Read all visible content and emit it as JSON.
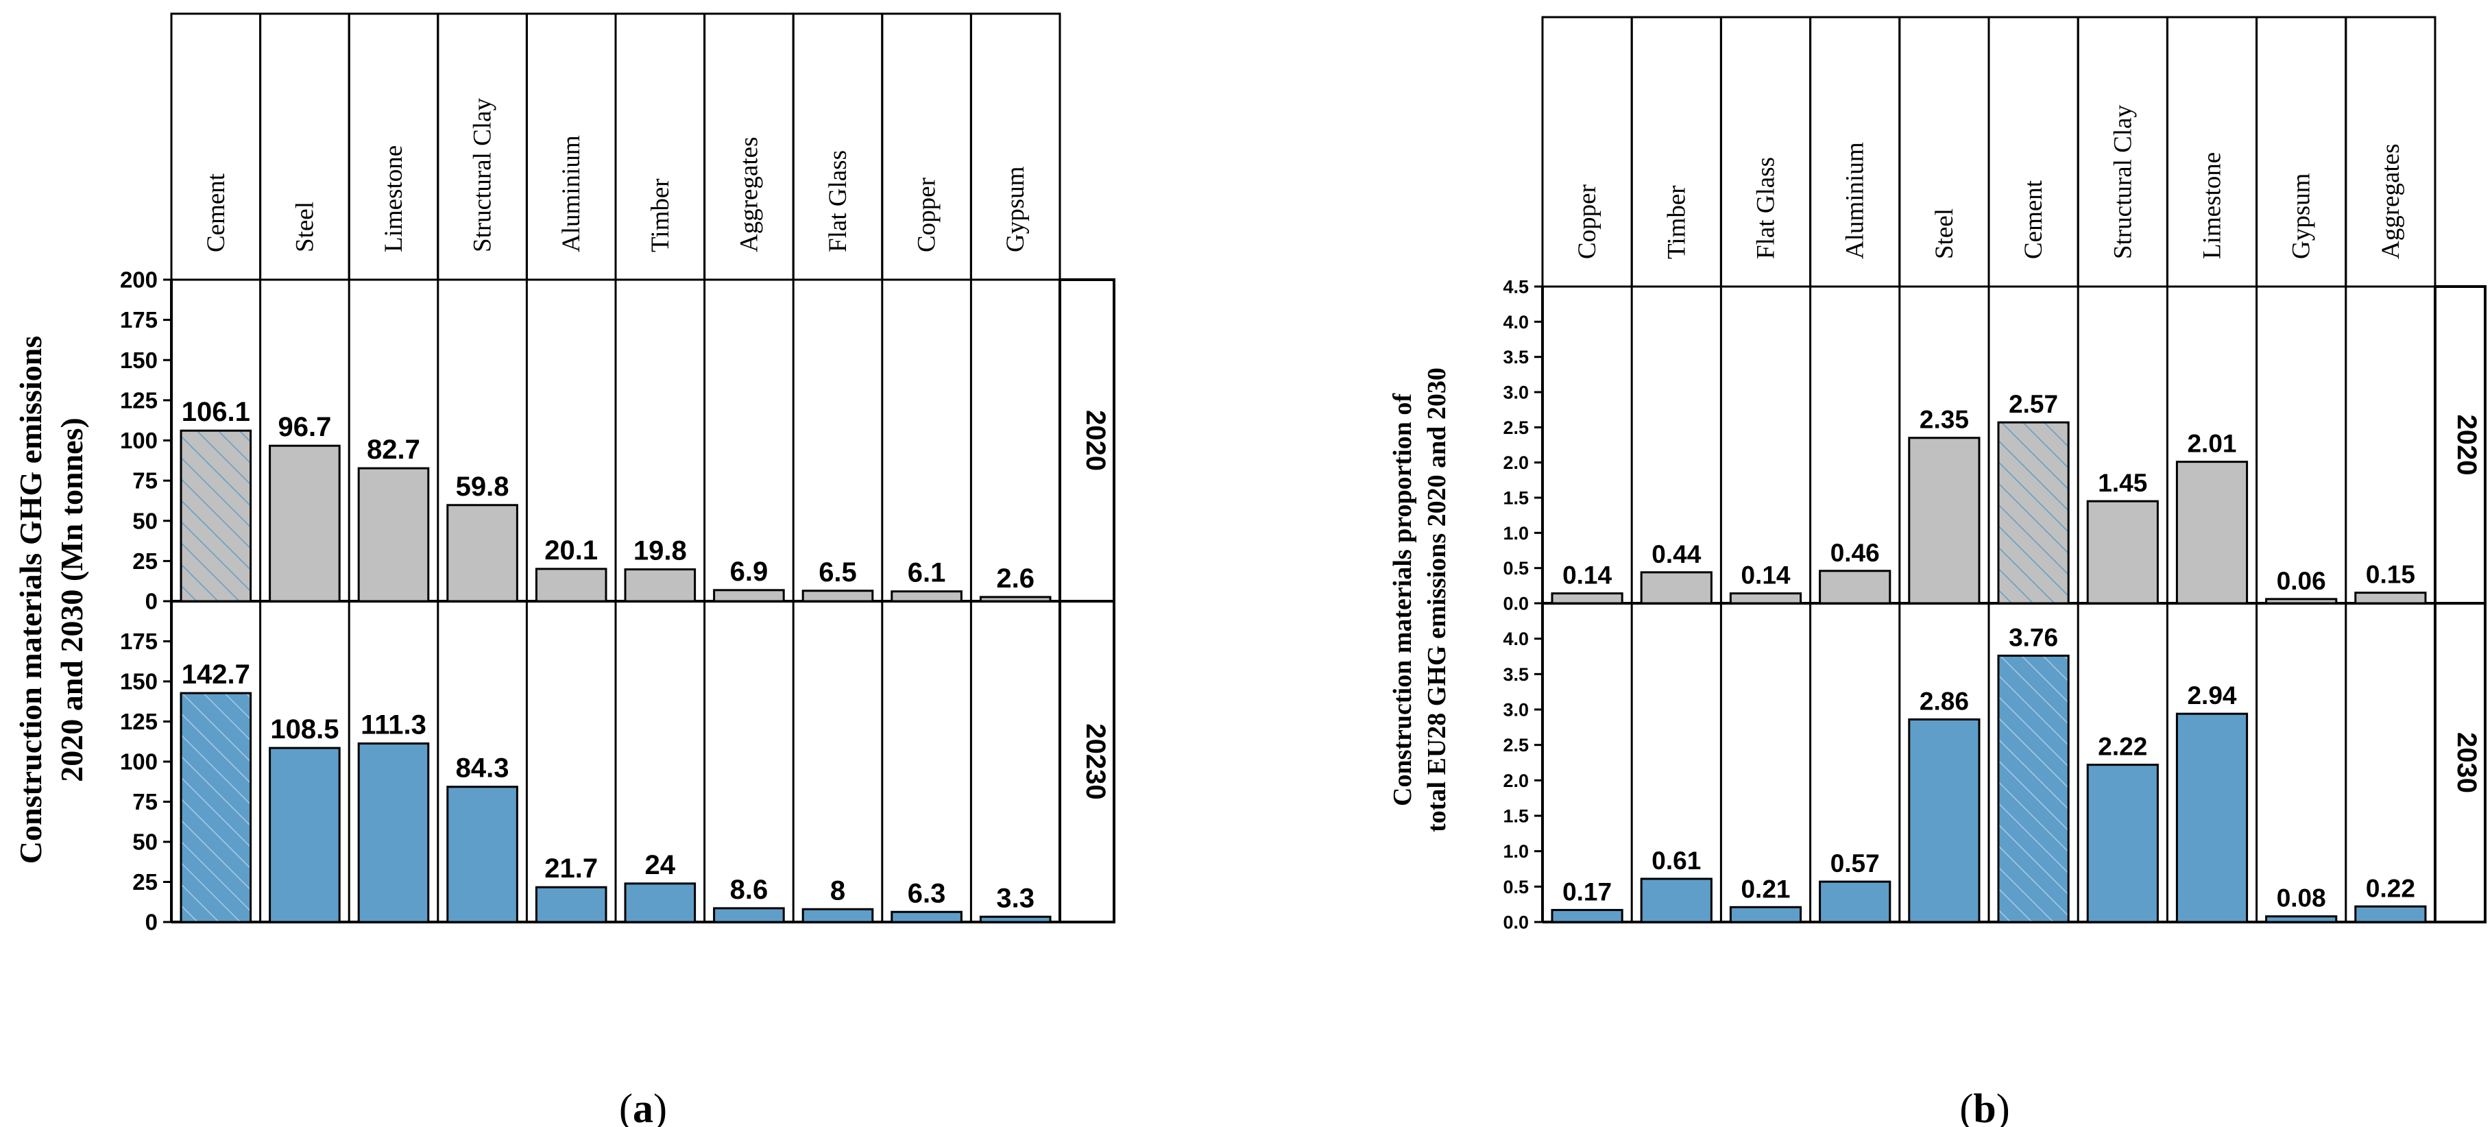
{
  "colors": {
    "bar_2020": "#c0c0c0",
    "bar_2030": "#5e9ec9",
    "hatch": "#5e9ec9",
    "outline": "#000000"
  },
  "chart_data": [
    {
      "id": "a",
      "type": "bar",
      "panel_label": "(a)",
      "ylabel": "Construction materials GHG emissions 2020 and 2030 (Mn tonnes)",
      "categories": [
        "Cement",
        "Steel",
        "Limestone",
        "Structural Clay",
        "Aluminium",
        "Timber",
        "Aggregates",
        "Flat Glass",
        "Copper",
        "Gypsum"
      ],
      "highlighted_category": "Cement",
      "panels": [
        {
          "year_label": "2020",
          "ylim": [
            0,
            200
          ],
          "yticks": [
            "0",
            "25",
            "50",
            "75",
            "100",
            "125",
            "150",
            "175",
            "200"
          ],
          "values": [
            106.1,
            96.7,
            82.7,
            59.8,
            20.1,
            19.8,
            6.9,
            6.5,
            6.1,
            2.6
          ],
          "value_labels": [
            "106.1",
            "96.7",
            "82.7",
            "59.8",
            "20.1",
            "19.8",
            "6.9",
            "6.5",
            "6.1",
            "2.6"
          ]
        },
        {
          "year_label": "20230",
          "ylim": [
            0,
            200
          ],
          "yticks": [
            "0",
            "25",
            "50",
            "75",
            "100",
            "125",
            "150",
            "175"
          ],
          "values": [
            142.7,
            108.5,
            111.3,
            84.3,
            21.7,
            24,
            8.6,
            8,
            6.3,
            3.3
          ],
          "value_labels": [
            "142.7",
            "108.5",
            "111.3",
            "84.3",
            "21.7",
            "24",
            "8.6",
            "8",
            "6.3",
            "3.3"
          ]
        }
      ]
    },
    {
      "id": "b",
      "type": "bar",
      "panel_label": "(b)",
      "ylabel": "Construction materials proportion of total EU28 GHG emissions 2020 and 2030",
      "categories": [
        "Copper",
        "Timber",
        "Flat Glass",
        "Aluminium",
        "Steel",
        "Cement",
        "Structural Clay",
        "Limestone",
        "Gypsum",
        "Aggregates"
      ],
      "highlighted_category": "Cement",
      "panels": [
        {
          "year_label": "2020",
          "ylim": [
            0,
            4.5
          ],
          "yticks": [
            "0.0",
            "0.5",
            "1.0",
            "1.5",
            "2.0",
            "2.5",
            "3.0",
            "3.5",
            "4.0",
            "4.5"
          ],
          "values": [
            0.14,
            0.44,
            0.14,
            0.46,
            2.35,
            2.57,
            1.45,
            2.01,
            0.06,
            0.15
          ],
          "value_labels": [
            "0.14",
            "0.44",
            "0.14",
            "0.46",
            "2.35",
            "2.57",
            "1.45",
            "2.01",
            "0.06",
            "0.15"
          ],
          "hidden_labels": [
            2,
            4,
            5,
            6,
            7
          ]
        },
        {
          "year_label": "2030",
          "ylim": [
            0,
            4.5
          ],
          "yticks": [
            "0.0",
            "0.5",
            "1.0",
            "1.5",
            "2.0",
            "2.5",
            "3.0",
            "3.5",
            "4.0"
          ],
          "values": [
            0.17,
            0.61,
            0.21,
            0.57,
            2.86,
            3.76,
            2.22,
            2.94,
            0.08,
            0.22
          ],
          "value_labels": [
            "0.17",
            "0.61",
            "0.21",
            "0.57",
            "2.86",
            "3.76",
            "2.22",
            "2.94",
            "0.08",
            "0.22"
          ]
        }
      ]
    }
  ]
}
